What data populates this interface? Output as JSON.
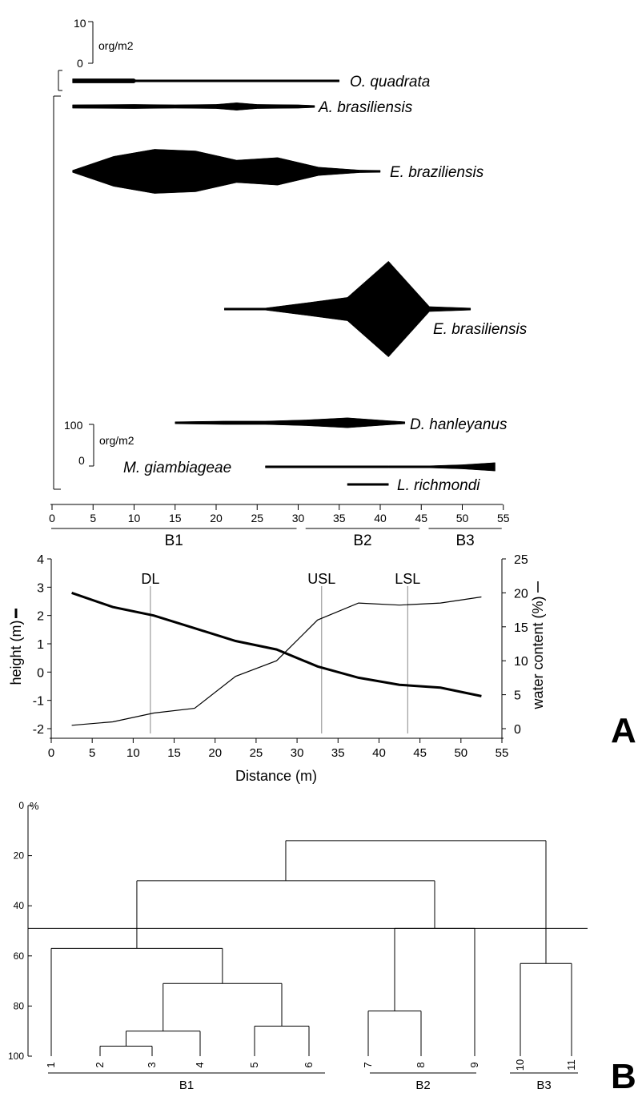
{
  "chart_data": [
    {
      "type": "area",
      "subtype": "kite diagram",
      "xlim": [
        0,
        55
      ],
      "x_ticks": [
        "0",
        "5",
        "10",
        "15",
        "20",
        "25",
        "30",
        "35",
        "40",
        "45",
        "50",
        "55"
      ],
      "scale_small": {
        "top": "10",
        "bottom": "0",
        "unit": "org/m2"
      },
      "scale_large": {
        "top": "100",
        "bottom": "0",
        "unit": "org/m2"
      },
      "zone_labels": [
        {
          "name": "B1",
          "range": [
            0,
            30
          ]
        },
        {
          "name": "B2",
          "range": [
            31,
            45
          ]
        },
        {
          "name": "B3",
          "range": [
            46,
            55
          ]
        }
      ],
      "series": [
        {
          "name": "O. quadrata",
          "scale": "small",
          "points": [
            [
              2.5,
              0.5
            ],
            [
              10,
              0.5
            ],
            [
              10.2,
              0.2
            ],
            [
              35,
              0.2
            ]
          ]
        },
        {
          "name": "A. brasiliensis",
          "scale": "small",
          "points": [
            [
              2.5,
              0.4
            ],
            [
              10,
              0.5
            ],
            [
              15,
              0.4
            ],
            [
              20,
              0.5
            ],
            [
              22.5,
              0.9
            ],
            [
              25,
              0.5
            ],
            [
              30,
              0.4
            ],
            [
              32,
              0.1
            ]
          ]
        },
        {
          "name": "E. braziliensis",
          "scale": "small",
          "points": [
            [
              2.5,
              0.2
            ],
            [
              7.5,
              3.6
            ],
            [
              12.5,
              5.3
            ],
            [
              17.5,
              4.9
            ],
            [
              22.5,
              2.7
            ],
            [
              27.5,
              3.3
            ],
            [
              32.5,
              1.0
            ],
            [
              37.5,
              0.3
            ],
            [
              40,
              0.1
            ]
          ]
        },
        {
          "name": "E. brasiliensis",
          "scale": "small",
          "points": [
            [
              21,
              0.1
            ],
            [
              26,
              0.1
            ],
            [
              31,
              1.5
            ],
            [
              36,
              2.8
            ],
            [
              41,
              11.5
            ],
            [
              46,
              0.6
            ],
            [
              51,
              0.1
            ]
          ]
        },
        {
          "name": "D. hanleyanus",
          "scale": "large",
          "points": [
            [
              15,
              1
            ],
            [
              21,
              4
            ],
            [
              26,
              4
            ],
            [
              31,
              7
            ],
            [
              36,
              12
            ],
            [
              41,
              5
            ],
            [
              43,
              1
            ]
          ]
        },
        {
          "name": "M. giambiageae",
          "scale": "large",
          "points": [
            [
              26,
              1
            ],
            [
              41,
              1
            ],
            [
              46,
              1
            ],
            [
              50,
              5
            ],
            [
              54,
              10
            ]
          ]
        },
        {
          "name": "L. richmondi",
          "scale": "large",
          "points": [
            [
              36,
              1
            ],
            [
              41,
              1
            ]
          ]
        }
      ]
    },
    {
      "type": "line",
      "xlabel": "Distance (m)",
      "ylabel": "height (m)",
      "ylabel_right": "water content (%)",
      "xlim": [
        0,
        55
      ],
      "ylim": [
        -2,
        4
      ],
      "ylim_right": [
        0,
        25
      ],
      "x_ticks": [
        "0",
        "5",
        "10",
        "15",
        "20",
        "25",
        "30",
        "35",
        "40",
        "45",
        "50",
        "55"
      ],
      "y_ticks": [
        "-2",
        "-1",
        "0",
        "1",
        "2",
        "3",
        "4"
      ],
      "y_ticks_right": [
        "0",
        "5",
        "10",
        "15",
        "20",
        "25"
      ],
      "reference_lines": [
        {
          "label": "DL",
          "x": 12.1
        },
        {
          "label": "USL",
          "x": 33
        },
        {
          "label": "LSL",
          "x": 43.5
        }
      ],
      "series": [
        {
          "name": "height",
          "axis": "left",
          "x": [
            2.5,
            7.5,
            12.5,
            17.5,
            22.5,
            27.5,
            32.5,
            37.5,
            42.5,
            47.5,
            52.5
          ],
          "y": [
            2.8,
            2.3,
            2.0,
            1.55,
            1.1,
            0.8,
            0.2,
            -0.2,
            -0.45,
            -0.55,
            -0.85
          ]
        },
        {
          "name": "water content",
          "axis": "right",
          "x": [
            2.5,
            7.5,
            12.5,
            17.5,
            22.5,
            27.5,
            32.5,
            37.5,
            42.5,
            47.5,
            52.5
          ],
          "y": [
            0.5,
            1.0,
            2.3,
            3.0,
            7.7,
            10.0,
            16.0,
            18.5,
            18.2,
            18.5,
            19.4
          ]
        }
      ]
    },
    {
      "type": "dendrogram",
      "ylabel": "%",
      "ylim": [
        0,
        100
      ],
      "y_ticks": [
        "0",
        "20",
        "40",
        "60",
        "80",
        "100"
      ],
      "leaves": [
        "1",
        "2",
        "3",
        "4",
        "5",
        "6",
        "7",
        "8",
        "9",
        "10",
        "11"
      ],
      "cut_level": 49,
      "merges": [
        {
          "members": [
            "2",
            "3"
          ],
          "similarity": 96
        },
        {
          "members": [
            "5",
            "6"
          ],
          "similarity": 88
        },
        {
          "members": [
            "2-3",
            "4"
          ],
          "similarity": 90
        },
        {
          "members": [
            "2-4",
            "5-6"
          ],
          "similarity": 71
        },
        {
          "members": [
            "1",
            "2-6"
          ],
          "similarity": 57
        },
        {
          "members": [
            "7",
            "8"
          ],
          "similarity": 82
        },
        {
          "members": [
            "7-8",
            "9"
          ],
          "similarity": 49
        },
        {
          "members": [
            "10",
            "11"
          ],
          "similarity": 63
        },
        {
          "members": [
            "B1",
            "B2"
          ],
          "similarity": 30
        },
        {
          "members": [
            "B1-B2",
            "B3"
          ],
          "similarity": 14
        }
      ],
      "groups": [
        {
          "name": "B1",
          "leaves": [
            "1",
            "2",
            "3",
            "4",
            "5",
            "6"
          ]
        },
        {
          "name": "B2",
          "leaves": [
            "7",
            "8",
            "9"
          ]
        },
        {
          "name": "B3",
          "leaves": [
            "10",
            "11"
          ]
        }
      ]
    }
  ],
  "panel_labels": {
    "a": "A",
    "b": "B"
  }
}
